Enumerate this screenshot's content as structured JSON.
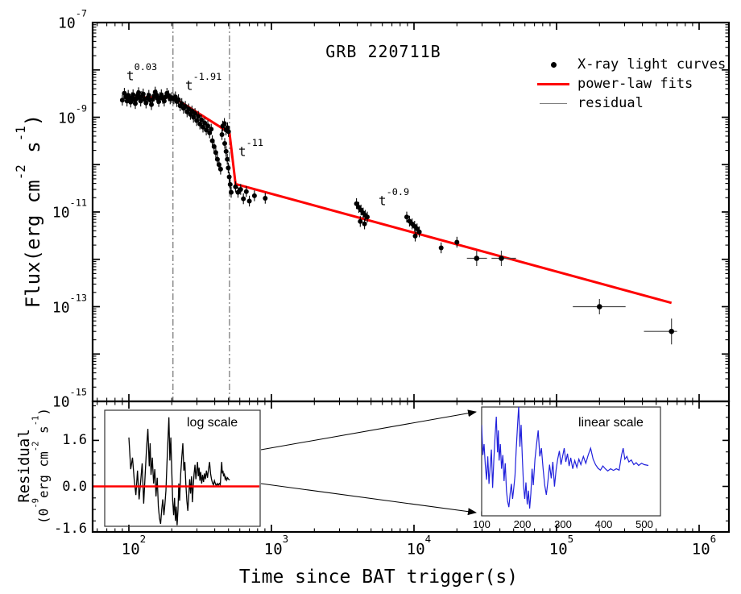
{
  "figure": {
    "title": "GRB 220711B",
    "background": "#ffffff"
  },
  "colors": {
    "fit_line": "#fe0000",
    "data_points": "#000000",
    "guide_line": "#555555",
    "residual_trace": "#000000",
    "zero_line": "#fe0000",
    "inset_trace": "#2121dc",
    "legend_residual": "#7f7f7f",
    "axis": "#000000"
  },
  "legend": {
    "items": [
      {
        "marker": "black-dot",
        "label": "X-ray light curves"
      },
      {
        "marker": "red-line",
        "label": "power-law fits"
      },
      {
        "marker": "gray-line",
        "label": "residual"
      }
    ]
  },
  "labels": {
    "xtitle": "Time since BAT trigger(s)",
    "flux": {
      "p1": "Flux(erg cm",
      "s1": "-2",
      "p2": " s",
      "s2": "-1",
      "p3": ")"
    },
    "residual": {
      "line1": "Residual",
      "u1": "(0",
      "s1": "-9",
      "u2": "erg cm",
      "s2": "-2",
      "u3": " s",
      "s3": "-1",
      "u4": ")"
    }
  },
  "annotations": {
    "fits": [
      {
        "base": "t",
        "exp": "0.03"
      },
      {
        "base": "t",
        "exp": "-1.91"
      },
      {
        "base": "t",
        "exp": "-11"
      },
      {
        "base": "t",
        "exp": "-0.9"
      }
    ],
    "log_scale": "log scale",
    "linear_scale": "linear scale"
  },
  "axes": {
    "x": {
      "ticks": [
        {
          "base": "10",
          "exp": "2",
          "t": 100
        },
        {
          "base": "10",
          "exp": "3",
          "t": 1000
        },
        {
          "base": "10",
          "exp": "4",
          "t": 10000
        },
        {
          "base": "10",
          "exp": "5",
          "t": 100000
        },
        {
          "base": "10",
          "exp": "6",
          "t": 1000000
        }
      ]
    },
    "y_main": {
      "ticks": [
        {
          "base": "10",
          "exp": "-7",
          "f": 1e-07
        },
        {
          "base": "10",
          "exp": "-9",
          "f": 1e-09
        },
        {
          "base": "10",
          "exp": "-11",
          "f": 1e-11
        },
        {
          "base": "10",
          "exp": "-13",
          "f": 1e-13
        },
        {
          "base": "10",
          "exp": "-15",
          "f": 1e-15
        }
      ]
    },
    "y_res": {
      "ticks": [
        {
          "label": "1.6",
          "v": 1.6
        },
        {
          "label": "0.0",
          "v": 0.0
        },
        {
          "label": "-1.6",
          "v": -1.6
        }
      ]
    },
    "inset_x": {
      "ticks": [
        {
          "label": "100",
          "t": 100
        },
        {
          "label": "200",
          "t": 200
        },
        {
          "label": "300",
          "t": 300
        },
        {
          "label": "400",
          "t": 400
        },
        {
          "label": "500",
          "t": 500
        }
      ]
    }
  },
  "chart_data": [
    {
      "id": "main-light-curve",
      "type": "scatter",
      "title": "GRB 220711B",
      "xlabel": "Time since BAT trigger(s)",
      "ylabel": "Flux(erg cm-2 s-1)",
      "xscale": "log",
      "yscale": "log",
      "xlim": [
        56,
        1620000
      ],
      "ylim": [
        1e-15,
        1e-07
      ],
      "xticks": [
        100,
        1000,
        10000,
        100000,
        1000000
      ],
      "yticks": [
        1e-07,
        1e-09,
        1e-11,
        1e-13,
        1e-15
      ],
      "legend_position": "top-right",
      "yerr_factor": 1.3,
      "break_times": [
        204,
        508
      ],
      "fit_slopes": [
        "0.03",
        "-1.91",
        "-11",
        "-0.9"
      ],
      "fit_vertices": [
        [
          97,
          2.58e-09
        ],
        [
          204,
          2.65e-09
        ],
        [
          508,
          4.7e-10
        ],
        [
          560,
          3.9e-11
        ],
        [
          640000,
          1.2e-13
        ]
      ],
      "points": [
        [
          90,
          2.3e-09
        ],
        [
          93,
          3.2e-09
        ],
        [
          95,
          2.7e-09
        ],
        [
          97,
          2.2e-09
        ],
        [
          99,
          2.9e-09
        ],
        [
          101,
          2.45e-09
        ],
        [
          103,
          2.1e-09
        ],
        [
          105,
          2.6e-09
        ],
        [
          107,
          3e-09
        ],
        [
          109,
          2.35e-09
        ],
        [
          111,
          1.95e-09
        ],
        [
          113,
          2.5e-09
        ],
        [
          115,
          2.85e-09
        ],
        [
          117,
          3.3e-09
        ],
        [
          119,
          2.6e-09
        ],
        [
          121,
          2.2e-09
        ],
        [
          123,
          2.75e-09
        ],
        [
          126,
          3.1e-09
        ],
        [
          129,
          2.4e-09
        ],
        [
          132,
          2e-09
        ],
        [
          135,
          2.55e-09
        ],
        [
          138,
          2.9e-09
        ],
        [
          141,
          2.3e-09
        ],
        [
          144,
          1.85e-09
        ],
        [
          147,
          2.4e-09
        ],
        [
          150,
          2.8e-09
        ],
        [
          153,
          3.4e-09
        ],
        [
          156,
          2.95e-09
        ],
        [
          159,
          2.5e-09
        ],
        [
          162,
          2.15e-09
        ],
        [
          165,
          2.6e-09
        ],
        [
          169,
          3e-09
        ],
        [
          173,
          2.5e-09
        ],
        [
          177,
          2.2e-09
        ],
        [
          181,
          2.7e-09
        ],
        [
          185,
          3.2e-09
        ],
        [
          190,
          2.85e-09
        ],
        [
          195,
          2.45e-09
        ],
        [
          200,
          2.6e-09
        ],
        [
          207,
          2.45e-09
        ],
        [
          212,
          2.7e-09
        ],
        [
          217,
          2.15e-09
        ],
        [
          223,
          2.35e-09
        ],
        [
          229,
          1.75e-09
        ],
        [
          235,
          1.95e-09
        ],
        [
          242,
          1.55e-09
        ],
        [
          249,
          1.7e-09
        ],
        [
          256,
          1.3e-09
        ],
        [
          263,
          1.5e-09
        ],
        [
          270,
          1.15e-09
        ],
        [
          277,
          1.35e-09
        ],
        [
          284,
          1e-09
        ],
        [
          291,
          1.2e-09
        ],
        [
          299,
          8.5e-10
        ],
        [
          307,
          1.05e-09
        ],
        [
          315,
          7.2e-10
        ],
        [
          323,
          8.8e-10
        ],
        [
          331,
          6.2e-10
        ],
        [
          340,
          7.6e-10
        ],
        [
          349,
          5.4e-10
        ],
        [
          358,
          6.6e-10
        ],
        [
          368,
          4.7e-10
        ],
        [
          378,
          5.6e-10
        ],
        [
          385,
          3.2e-10
        ],
        [
          396,
          2.4e-10
        ],
        [
          407,
          1.8e-10
        ],
        [
          418,
          1.3e-10
        ],
        [
          429,
          1e-10
        ],
        [
          440,
          8e-11
        ],
        [
          450,
          4.3e-10
        ],
        [
          455,
          6.5e-10
        ],
        [
          468,
          7.4e-10
        ],
        [
          480,
          5.4e-10
        ],
        [
          492,
          6e-10
        ],
        [
          500,
          5e-10
        ],
        [
          470,
          2.8e-10
        ],
        [
          481,
          1.9e-10
        ],
        [
          490,
          1.3e-10
        ],
        [
          498,
          8.5e-11
        ],
        [
          506,
          5.5e-11
        ],
        [
          514,
          3.8e-11
        ],
        [
          522,
          2.6e-11
        ],
        [
          560,
          3.4e-11
        ],
        [
          583,
          2.6e-11
        ],
        [
          608,
          3e-11
        ],
        [
          636,
          1.9e-11
        ],
        [
          666,
          2.7e-11
        ],
        [
          700,
          1.7e-11
        ],
        [
          760,
          2.2e-11
        ],
        [
          905,
          1.95e-11
        ],
        [
          3950,
          1.5e-11
        ],
        [
          4100,
          1.25e-11
        ],
        [
          4250,
          1.1e-11
        ],
        [
          4400,
          9.5e-12
        ],
        [
          4550,
          8.5e-12
        ],
        [
          4700,
          7.8e-12
        ],
        [
          4200,
          6.3e-12
        ],
        [
          4500,
          5.6e-12
        ],
        [
          8900,
          7.8e-12
        ],
        [
          9300,
          6.4e-12
        ],
        [
          9700,
          5.6e-12
        ],
        [
          10100,
          5e-12
        ],
        [
          10500,
          4.4e-12
        ],
        [
          10900,
          3.8e-12
        ],
        [
          10200,
          3.1e-12
        ],
        [
          15500,
          1.75e-12
        ],
        [
          20000,
          2.3e-12
        ]
      ],
      "late_points": [
        {
          "t": 27500,
          "f": 1.05e-12,
          "tlo": 23500,
          "thi": 32500
        },
        {
          "t": 41000,
          "f": 1.05e-12,
          "tlo": 35000,
          "thi": 52000
        },
        {
          "t": 200000,
          "f": 1e-13,
          "tlo": 130000,
          "thi": 305000
        },
        {
          "t": 640000,
          "f": 3e-14,
          "tlo": 410000,
          "thi": 700000,
          "flo": 1.6e-14,
          "fhi": 5.6e-14
        }
      ]
    },
    {
      "id": "residual-log",
      "type": "line",
      "xscale": "log",
      "label": "log scale",
      "ylabel": "Residual (0-9 erg cm-2 s-1)",
      "yticks": [
        1.6,
        0.0,
        -1.6
      ],
      "ylim": [
        -1.6,
        2.96
      ],
      "zero_line": 0,
      "points": [
        [
          100,
          1.7
        ],
        [
          103,
          0.6
        ],
        [
          106,
          1.0
        ],
        [
          109,
          0.25
        ],
        [
          112,
          -0.3
        ],
        [
          115,
          0.55
        ],
        [
          118,
          -0.45
        ],
        [
          121,
          0.2
        ],
        [
          124,
          0.8
        ],
        [
          127,
          -0.6
        ],
        [
          130,
          0.4
        ],
        [
          133,
          1.3
        ],
        [
          136,
          2.0
        ],
        [
          139,
          0.7
        ],
        [
          141,
          1.5
        ],
        [
          143,
          0.4
        ],
        [
          146,
          1.0
        ],
        [
          149,
          0.1
        ],
        [
          152,
          0.6
        ],
        [
          155,
          -0.35
        ],
        [
          158,
          0.3
        ],
        [
          161,
          -0.7
        ],
        [
          164,
          -1.1
        ],
        [
          167,
          -1.3
        ],
        [
          170,
          -0.8
        ],
        [
          173,
          -0.45
        ],
        [
          176,
          -1.0
        ],
        [
          179,
          -0.6
        ],
        [
          182,
          -0.15
        ],
        [
          185,
          0.8
        ],
        [
          188,
          1.6
        ],
        [
          191,
          2.4
        ],
        [
          194,
          0.9
        ],
        [
          197,
          1.7
        ],
        [
          200,
          0.5
        ],
        [
          203,
          -0.5
        ],
        [
          206,
          -1.0
        ],
        [
          209,
          -0.4
        ],
        [
          212,
          -1.2
        ],
        [
          215,
          -0.7
        ],
        [
          218,
          -1.35
        ],
        [
          221,
          -0.8
        ],
        [
          224,
          0.1
        ],
        [
          227,
          -0.5
        ],
        [
          231,
          0.45
        ],
        [
          235,
          1.0
        ],
        [
          239,
          1.5
        ],
        [
          243,
          0.55
        ],
        [
          247,
          0.85
        ],
        [
          251,
          0.1
        ],
        [
          255,
          -0.5
        ],
        [
          259,
          -0.85
        ],
        [
          263,
          -0.35
        ],
        [
          267,
          0.25
        ],
        [
          271,
          -0.25
        ],
        [
          275,
          0.35
        ],
        [
          279,
          -0.55
        ],
        [
          283,
          0.05
        ],
        [
          287,
          0.45
        ],
        [
          291,
          0.75
        ],
        [
          295,
          0.25
        ],
        [
          299,
          0.55
        ],
        [
          303,
          0.85
        ],
        [
          307,
          0.35
        ],
        [
          311,
          0.65
        ],
        [
          315,
          0.2
        ],
        [
          319,
          0.5
        ],
        [
          324,
          0.1
        ],
        [
          329,
          0.4
        ],
        [
          334,
          0.15
        ],
        [
          339,
          0.45
        ],
        [
          344,
          0.25
        ],
        [
          350,
          0.55
        ],
        [
          356,
          0.3
        ],
        [
          362,
          0.6
        ],
        [
          368,
          0.85
        ],
        [
          374,
          0.45
        ],
        [
          380,
          0.25
        ],
        [
          386,
          0.12
        ],
        [
          392,
          0.05
        ],
        [
          398,
          0.2
        ],
        [
          404,
          0.1
        ],
        [
          410,
          0.02
        ],
        [
          417,
          0.1
        ],
        [
          424,
          0.04
        ],
        [
          431,
          0.1
        ],
        [
          438,
          0.05
        ],
        [
          444,
          0.6
        ],
        [
          448,
          0.85
        ],
        [
          452,
          0.45
        ],
        [
          457,
          0.55
        ],
        [
          462,
          0.35
        ],
        [
          468,
          0.42
        ],
        [
          474,
          0.25
        ],
        [
          480,
          0.32
        ],
        [
          486,
          0.22
        ],
        [
          493,
          0.3
        ],
        [
          500,
          0.25
        ],
        [
          510,
          0.22
        ]
      ]
    },
    {
      "id": "residual-inset",
      "type": "line",
      "xscale": "linear",
      "label": "linear scale",
      "xlim": [
        100,
        530
      ],
      "xticks": [
        100,
        200,
        300,
        400,
        500
      ],
      "points": "same series as residual-log"
    }
  ]
}
